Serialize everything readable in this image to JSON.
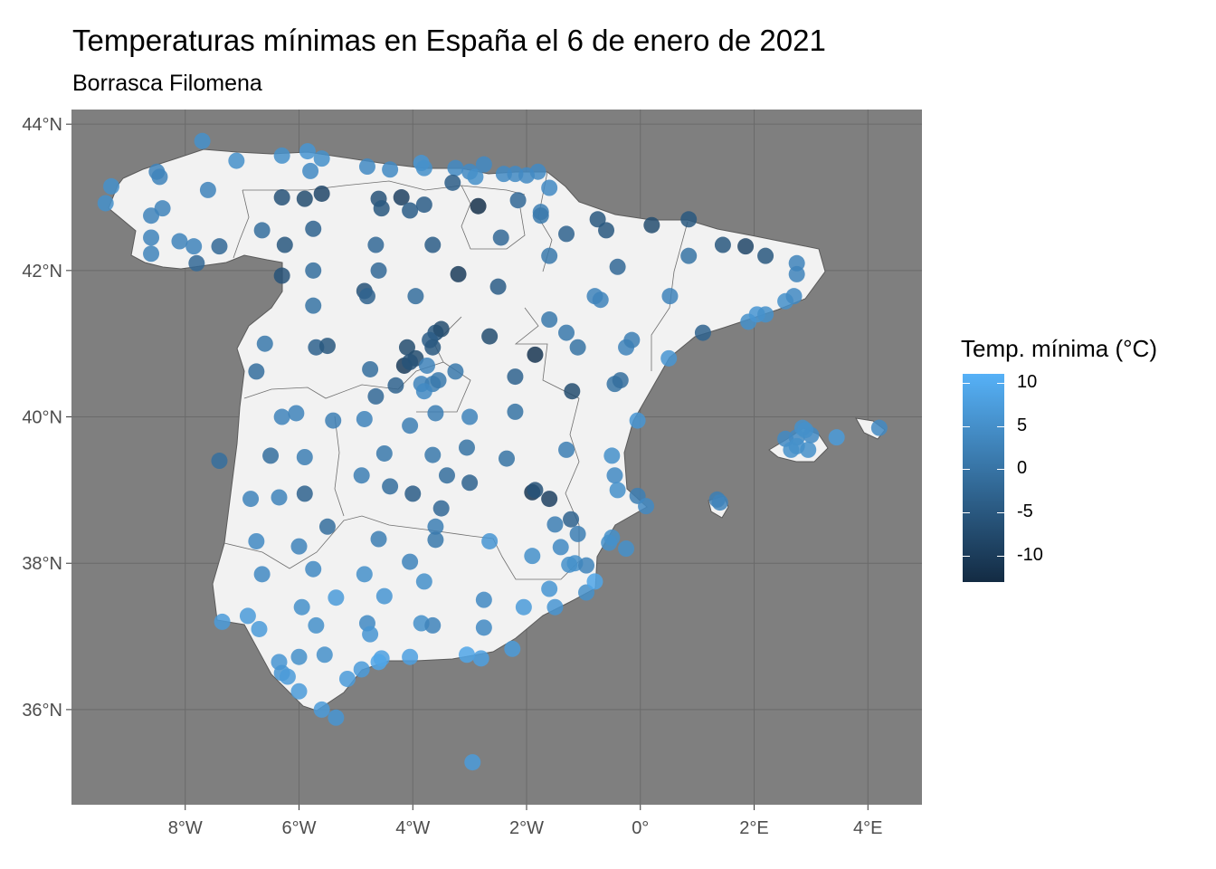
{
  "title": "Temperaturas mínimas en España el 6 de enero de 2021",
  "subtitle": "Borrasca Filomena",
  "colors": {
    "panel_bg": "#7f7f7f",
    "land": "#f2f2f2",
    "grid": "#6a6a6a",
    "low": "#132b43",
    "high": "#56b1f7"
  },
  "chart_data": {
    "type": "scatter",
    "title": "Temperaturas mínimas en España el 6 de enero de 2021",
    "subtitle": "Borrasca Filomena",
    "x_ticks": [
      {
        "value": -8,
        "label": "8°W"
      },
      {
        "value": -6,
        "label": "6°W"
      },
      {
        "value": -4,
        "label": "4°W"
      },
      {
        "value": -2,
        "label": "2°W"
      },
      {
        "value": 0,
        "label": "0°"
      },
      {
        "value": 2,
        "label": "2°E"
      },
      {
        "value": 4,
        "label": "4°E"
      }
    ],
    "y_ticks": [
      {
        "value": 36,
        "label": "36°N"
      },
      {
        "value": 38,
        "label": "38°N"
      },
      {
        "value": 40,
        "label": "40°N"
      },
      {
        "value": 42,
        "label": "42°N"
      },
      {
        "value": 44,
        "label": "44°N"
      }
    ],
    "xlim": [
      -10.0,
      4.95
    ],
    "ylim": [
      34.7,
      44.2
    ],
    "legend": {
      "title": "Temp. mínima (°C)",
      "placement": "right",
      "ticks": [
        10,
        5,
        0,
        -5,
        -10
      ],
      "range": [
        -13,
        11
      ]
    },
    "stations": [
      [
        -7.7,
        43.77,
        5
      ],
      [
        -6.3,
        43.57,
        5
      ],
      [
        -5.85,
        43.63,
        6
      ],
      [
        -5.6,
        43.53,
        5
      ],
      [
        -5.8,
        43.36,
        4
      ],
      [
        -7.1,
        43.5,
        5
      ],
      [
        -4.8,
        43.42,
        4
      ],
      [
        -4.4,
        43.38,
        4
      ],
      [
        -3.85,
        43.47,
        6
      ],
      [
        -3.8,
        43.4,
        5
      ],
      [
        -3.25,
        43.4,
        4
      ],
      [
        -3.0,
        43.35,
        4
      ],
      [
        -2.9,
        43.28,
        5
      ],
      [
        -2.75,
        43.45,
        4
      ],
      [
        -2.4,
        43.32,
        4
      ],
      [
        -2.2,
        43.32,
        4
      ],
      [
        -2.0,
        43.3,
        4
      ],
      [
        -1.8,
        43.35,
        4
      ],
      [
        -1.6,
        43.13,
        4
      ],
      [
        -9.3,
        43.15,
        5
      ],
      [
        -9.4,
        42.92,
        5
      ],
      [
        -8.5,
        43.35,
        3
      ],
      [
        -8.45,
        43.28,
        3
      ],
      [
        -7.6,
        43.1,
        3
      ],
      [
        -6.3,
        43.0,
        -6
      ],
      [
        -5.9,
        42.98,
        -7
      ],
      [
        -5.6,
        43.05,
        -8
      ],
      [
        -4.6,
        42.98,
        -6
      ],
      [
        -4.2,
        43.0,
        -9
      ],
      [
        -3.8,
        42.9,
        -4
      ],
      [
        -4.05,
        42.82,
        -4
      ],
      [
        -4.55,
        42.85,
        -5
      ],
      [
        -3.3,
        43.2,
        -4
      ],
      [
        -2.85,
        42.88,
        -12
      ],
      [
        -2.15,
        42.96,
        -2
      ],
      [
        -1.75,
        42.8,
        2
      ],
      [
        -1.75,
        42.75,
        1
      ],
      [
        -8.6,
        42.75,
        3
      ],
      [
        -8.4,
        42.85,
        3
      ],
      [
        -8.6,
        42.45,
        3
      ],
      [
        -8.6,
        42.23,
        3
      ],
      [
        -8.1,
        42.4,
        3
      ],
      [
        -7.85,
        42.33,
        3
      ],
      [
        -7.4,
        42.33,
        -2
      ],
      [
        -7.8,
        42.1,
        -2
      ],
      [
        -6.65,
        42.55,
        -1
      ],
      [
        -6.25,
        42.35,
        -5
      ],
      [
        -5.75,
        42.57,
        -3
      ],
      [
        -4.65,
        42.35,
        -2
      ],
      [
        -3.65,
        42.35,
        -4
      ],
      [
        -2.45,
        42.45,
        -2
      ],
      [
        -1.3,
        42.5,
        -3
      ],
      [
        -0.75,
        42.7,
        -5
      ],
      [
        -0.6,
        42.55,
        -5
      ],
      [
        0.2,
        42.62,
        -7
      ],
      [
        0.85,
        42.7,
        -5
      ],
      [
        1.45,
        42.35,
        -5
      ],
      [
        1.85,
        42.33,
        -8
      ],
      [
        2.2,
        42.2,
        -5
      ],
      [
        2.75,
        42.1,
        3
      ],
      [
        2.75,
        41.95,
        3
      ],
      [
        -1.6,
        42.2,
        1
      ],
      [
        -0.4,
        42.05,
        -2
      ],
      [
        0.85,
        42.2,
        0
      ],
      [
        -6.3,
        41.93,
        -6
      ],
      [
        -5.75,
        42.0,
        -1
      ],
      [
        -4.6,
        42.0,
        -2
      ],
      [
        -3.2,
        41.95,
        -10
      ],
      [
        -2.5,
        41.78,
        -4
      ],
      [
        -4.85,
        41.72,
        -6
      ],
      [
        -4.8,
        41.65,
        -3
      ],
      [
        -3.95,
        41.65,
        -1
      ],
      [
        -5.75,
        41.52,
        0
      ],
      [
        -1.6,
        41.33,
        1
      ],
      [
        -1.3,
        41.15,
        1
      ],
      [
        -1.1,
        40.95,
        0
      ],
      [
        -0.8,
        41.65,
        3
      ],
      [
        -0.7,
        41.6,
        3
      ],
      [
        -0.25,
        40.95,
        3
      ],
      [
        -0.15,
        41.05,
        2
      ],
      [
        0.52,
        41.65,
        3
      ],
      [
        1.1,
        41.15,
        -3
      ],
      [
        1.9,
        41.3,
        5
      ],
      [
        2.05,
        41.4,
        6
      ],
      [
        2.2,
        41.4,
        5
      ],
      [
        2.55,
        41.58,
        5
      ],
      [
        2.7,
        41.65,
        4
      ],
      [
        -3.6,
        41.15,
        -5
      ],
      [
        -3.7,
        41.05,
        -4
      ],
      [
        -3.5,
        41.2,
        -7
      ],
      [
        -2.65,
        41.1,
        -7
      ],
      [
        -5.7,
        40.95,
        -3
      ],
      [
        -5.5,
        40.97,
        -5
      ],
      [
        -6.6,
        41.0,
        1
      ],
      [
        -4.1,
        40.95,
        -7
      ],
      [
        -4.15,
        40.7,
        -10
      ],
      [
        -3.95,
        40.8,
        -7
      ],
      [
        -4.05,
        40.75,
        -6
      ],
      [
        -3.65,
        40.95,
        -5
      ],
      [
        -3.75,
        40.7,
        3
      ],
      [
        -3.85,
        40.45,
        3
      ],
      [
        -3.65,
        40.45,
        2
      ],
      [
        -3.55,
        40.5,
        1
      ],
      [
        -3.25,
        40.62,
        1
      ],
      [
        -4.75,
        40.65,
        -1
      ],
      [
        -3.8,
        40.35,
        4
      ],
      [
        -3.6,
        40.05,
        2
      ],
      [
        -4.65,
        40.28,
        -2
      ],
      [
        -4.3,
        40.43,
        -3
      ],
      [
        -1.85,
        40.85,
        -11
      ],
      [
        -2.2,
        40.55,
        -3
      ],
      [
        -1.2,
        40.35,
        -7
      ],
      [
        -0.45,
        40.45,
        0
      ],
      [
        -0.35,
        40.5,
        -1
      ],
      [
        0.5,
        40.8,
        6
      ],
      [
        -6.75,
        40.62,
        -1
      ],
      [
        -6.3,
        40.0,
        3
      ],
      [
        -6.05,
        40.05,
        3
      ],
      [
        -5.4,
        39.95,
        2
      ],
      [
        -4.85,
        39.97,
        3
      ],
      [
        -4.05,
        39.88,
        2
      ],
      [
        -3.0,
        40.0,
        3
      ],
      [
        -2.2,
        40.07,
        0
      ],
      [
        -6.5,
        39.47,
        -1
      ],
      [
        -7.4,
        39.4,
        -1
      ],
      [
        -5.9,
        39.45,
        2
      ],
      [
        -4.5,
        39.5,
        1
      ],
      [
        -3.65,
        39.48,
        1
      ],
      [
        -3.05,
        39.58,
        0
      ],
      [
        -2.35,
        39.43,
        0
      ],
      [
        -1.3,
        39.55,
        2
      ],
      [
        -0.5,
        39.47,
        5
      ],
      [
        -0.45,
        39.2,
        4
      ],
      [
        -0.4,
        39.0,
        5
      ],
      [
        -0.05,
        38.92,
        2
      ],
      [
        0.1,
        38.78,
        4
      ],
      [
        -0.05,
        39.95,
        6
      ],
      [
        -6.85,
        38.88,
        3
      ],
      [
        -6.35,
        38.9,
        3
      ],
      [
        -5.9,
        38.95,
        -3
      ],
      [
        -4.9,
        39.2,
        2
      ],
      [
        -4.4,
        39.05,
        -1
      ],
      [
        -4.0,
        38.95,
        -4
      ],
      [
        -3.4,
        39.2,
        -1
      ],
      [
        -3.0,
        39.1,
        -3
      ],
      [
        -1.9,
        38.97,
        -11
      ],
      [
        -1.85,
        39.0,
        -6
      ],
      [
        -3.5,
        38.75,
        -2
      ],
      [
        -3.6,
        38.5,
        2
      ],
      [
        -1.6,
        38.88,
        -9
      ],
      [
        -1.5,
        38.53,
        2
      ],
      [
        -1.22,
        38.6,
        -3
      ],
      [
        -1.1,
        38.4,
        2
      ],
      [
        -0.5,
        38.35,
        5
      ],
      [
        -0.55,
        38.28,
        5
      ],
      [
        -0.25,
        38.2,
        5
      ],
      [
        -5.5,
        38.5,
        -1
      ],
      [
        -4.6,
        38.33,
        2
      ],
      [
        -3.6,
        38.32,
        1
      ],
      [
        -2.65,
        38.3,
        6
      ],
      [
        -1.9,
        38.1,
        5
      ],
      [
        -1.4,
        38.22,
        4
      ],
      [
        -1.15,
        38.0,
        5
      ],
      [
        -0.95,
        37.97,
        3
      ],
      [
        -1.25,
        37.98,
        5
      ],
      [
        -1.6,
        37.65,
        6
      ],
      [
        -1.5,
        37.4,
        6
      ],
      [
        -0.95,
        37.6,
        5
      ],
      [
        -0.8,
        37.75,
        9
      ],
      [
        -6.75,
        38.3,
        4
      ],
      [
        -6.0,
        38.23,
        3
      ],
      [
        -6.65,
        37.85,
        4
      ],
      [
        -5.75,
        37.92,
        4
      ],
      [
        -4.85,
        37.85,
        5
      ],
      [
        -4.05,
        38.02,
        3
      ],
      [
        -3.8,
        37.75,
        5
      ],
      [
        -5.95,
        37.4,
        5
      ],
      [
        -5.35,
        37.53,
        7
      ],
      [
        -4.5,
        37.55,
        6
      ],
      [
        -2.75,
        37.5,
        4
      ],
      [
        -2.05,
        37.4,
        7
      ],
      [
        -5.7,
        37.15,
        5
      ],
      [
        -4.8,
        37.18,
        4
      ],
      [
        -3.85,
        37.18,
        5
      ],
      [
        -3.65,
        37.15,
        3
      ],
      [
        -2.75,
        37.12,
        4
      ],
      [
        -4.75,
        37.03,
        6
      ],
      [
        -7.35,
        37.2,
        7
      ],
      [
        -6.9,
        37.28,
        7
      ],
      [
        -6.7,
        37.1,
        7
      ],
      [
        -6.35,
        36.65,
        6
      ],
      [
        -6.3,
        36.5,
        6
      ],
      [
        -6.2,
        36.45,
        7
      ],
      [
        -6.0,
        36.72,
        5
      ],
      [
        -5.55,
        36.75,
        5
      ],
      [
        -4.9,
        36.55,
        7
      ],
      [
        -4.55,
        36.7,
        8
      ],
      [
        -4.6,
        36.65,
        9
      ],
      [
        -4.05,
        36.72,
        8
      ],
      [
        -3.05,
        36.75,
        9
      ],
      [
        -2.8,
        36.7,
        8
      ],
      [
        -2.25,
        36.83,
        7
      ],
      [
        -5.15,
        36.42,
        7
      ],
      [
        -6.0,
        36.25,
        7
      ],
      [
        -5.6,
        36.0,
        7
      ],
      [
        -5.35,
        35.89,
        6
      ],
      [
        -2.95,
        35.28,
        7
      ],
      [
        2.55,
        39.7,
        4
      ],
      [
        2.75,
        39.72,
        4
      ],
      [
        2.85,
        39.85,
        5
      ],
      [
        2.65,
        39.55,
        5
      ],
      [
        3.0,
        39.75,
        4
      ],
      [
        2.95,
        39.55,
        5
      ],
      [
        2.75,
        39.6,
        5
      ],
      [
        2.9,
        39.82,
        5
      ],
      [
        3.45,
        39.72,
        7
      ],
      [
        4.2,
        39.85,
        4
      ],
      [
        1.35,
        38.87,
        2
      ],
      [
        1.4,
        38.83,
        3
      ]
    ]
  }
}
